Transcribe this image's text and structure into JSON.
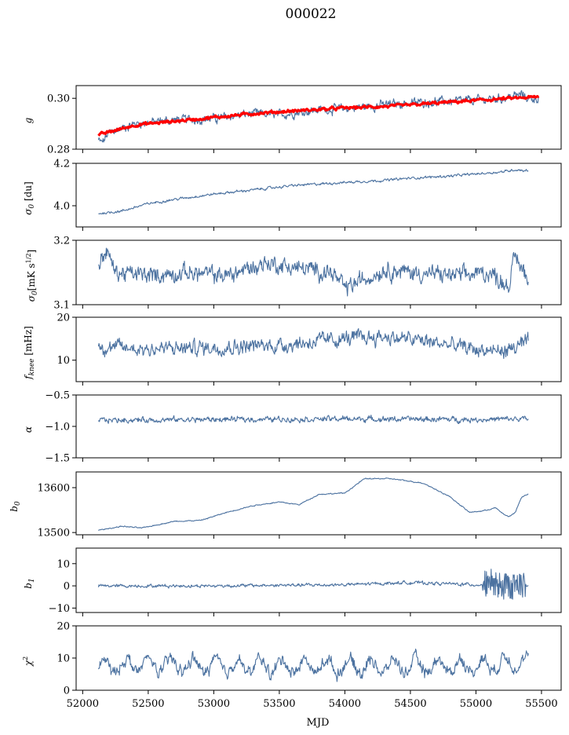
{
  "title": "000022",
  "chart_data": {
    "type": "line",
    "title": "000022",
    "xlabel": "MJD",
    "xlim": [
      51950,
      55650
    ],
    "xticks": [
      52000,
      52500,
      53000,
      53500,
      54000,
      54500,
      55000,
      55500
    ],
    "shared_x": true,
    "grid": false,
    "panels": [
      {
        "id": "g",
        "ylabel_main": "g",
        "ylabel_sub": "",
        "ylabel_suffix": "",
        "ylim": [
          0.28,
          0.305
        ],
        "yticks": [
          0.28,
          0.3
        ],
        "ytick_labels": [
          "0.28",
          "0.30"
        ],
        "data_range": [
          52120,
          55480
        ],
        "series": [
          {
            "style": "data",
            "color": "#4c72a0",
            "noise": 0.0012,
            "keys": [
              [
                52120,
                0.2835
              ],
              [
                52150,
                0.2825
              ],
              [
                52200,
                0.2865
              ],
              [
                52400,
                0.29
              ],
              [
                52700,
                0.2915
              ],
              [
                53000,
                0.292
              ],
              [
                53300,
                0.294
              ],
              [
                53500,
                0.2935
              ],
              [
                53800,
                0.2955
              ],
              [
                54000,
                0.296
              ],
              [
                54300,
                0.2975
              ],
              [
                54600,
                0.2985
              ],
              [
                54900,
                0.299
              ],
              [
                55200,
                0.3
              ],
              [
                55350,
                0.3015
              ],
              [
                55400,
                0.3
              ]
            ]
          },
          {
            "style": "fit",
            "color": "#ff0000",
            "noise": 0.0004,
            "keys": [
              [
                52120,
                0.2855
              ],
              [
                52150,
                0.286
              ],
              [
                52400,
                0.2895
              ],
              [
                52700,
                0.291
              ],
              [
                53000,
                0.2925
              ],
              [
                53300,
                0.294
              ],
              [
                53600,
                0.295
              ],
              [
                54000,
                0.2962
              ],
              [
                54400,
                0.297
              ],
              [
                54800,
                0.2985
              ],
              [
                55200,
                0.2998
              ],
              [
                55480,
                0.3005
              ]
            ]
          }
        ]
      },
      {
        "id": "sigma0-du",
        "ylabel_main": "σ",
        "ylabel_sub": "0",
        "ylabel_suffix": " [du]",
        "ylim": [
          3.9,
          4.2
        ],
        "yticks": [
          4.0,
          4.2
        ],
        "ytick_labels": [
          "4.0",
          "4.2"
        ],
        "data_range": [
          52120,
          55400
        ],
        "series": [
          {
            "style": "data",
            "color": "#4c72a0",
            "noise": 0.004,
            "keys": [
              [
                52120,
                3.963
              ],
              [
                52300,
                3.975
              ],
              [
                52500,
                4.01
              ],
              [
                52700,
                4.03
              ],
              [
                53000,
                4.055
              ],
              [
                53300,
                4.075
              ],
              [
                53600,
                4.095
              ],
              [
                54000,
                4.11
              ],
              [
                54300,
                4.12
              ],
              [
                54500,
                4.13
              ],
              [
                54800,
                4.14
              ],
              [
                55000,
                4.15
              ],
              [
                55200,
                4.16
              ],
              [
                55300,
                4.17
              ],
              [
                55400,
                4.165
              ]
            ]
          }
        ]
      },
      {
        "id": "sigma0-mks",
        "ylabel_main": "σ",
        "ylabel_sub": "0",
        "ylabel_suffix": "[mK s",
        "ylim": [
          3.1,
          3.2
        ],
        "yticks": [
          3.1,
          3.2
        ],
        "ytick_labels": [
          "3.1",
          "3.2"
        ],
        "data_range": [
          52120,
          55400
        ],
        "series": [
          {
            "style": "data",
            "color": "#4c72a0",
            "noise": 0.009,
            "keys": [
              [
                52120,
                3.162
              ],
              [
                52180,
                3.185
              ],
              [
                52250,
                3.15
              ],
              [
                52500,
                3.145
              ],
              [
                52800,
                3.15
              ],
              [
                53100,
                3.145
              ],
              [
                53400,
                3.165
              ],
              [
                53600,
                3.158
              ],
              [
                53900,
                3.15
              ],
              [
                54000,
                3.125
              ],
              [
                54300,
                3.155
              ],
              [
                54600,
                3.148
              ],
              [
                54900,
                3.145
              ],
              [
                55100,
                3.15
              ],
              [
                55250,
                3.13
              ],
              [
                55300,
                3.175
              ],
              [
                55400,
                3.14
              ]
            ]
          }
        ]
      },
      {
        "id": "fknee",
        "ylabel_main": "f",
        "ylabel_sub": "knee",
        "ylabel_suffix": " [mHz]",
        "ylim": [
          5,
          20
        ],
        "yticks": [
          10,
          20
        ],
        "ytick_labels": [
          "10",
          "20"
        ],
        "data_range": [
          52120,
          55400
        ],
        "series": [
          {
            "style": "data",
            "color": "#4c72a0",
            "noise": 1.2,
            "keys": [
              [
                52120,
                13.2
              ],
              [
                52500,
                12.6
              ],
              [
                53000,
                13
              ],
              [
                53500,
                13.5
              ],
              [
                54000,
                15
              ],
              [
                54300,
                15.5
              ],
              [
                54600,
                14.5
              ],
              [
                55000,
                12.5
              ],
              [
                55200,
                12
              ],
              [
                55300,
                13
              ],
              [
                55400,
                14
              ]
            ]
          }
        ]
      },
      {
        "id": "alpha",
        "ylabel_main": "α",
        "ylabel_sub": "",
        "ylabel_suffix": "",
        "ylim": [
          -1.5,
          -0.5
        ],
        "yticks": [
          -1.5,
          -1.0,
          -0.5
        ],
        "ytick_labels": [
          "−1.5",
          "−1.0",
          "−0.5"
        ],
        "data_range": [
          52120,
          55400
        ],
        "series": [
          {
            "style": "data",
            "color": "#4c72a0",
            "noise": 0.03,
            "keys": [
              [
                52120,
                -0.9
              ],
              [
                53000,
                -0.89
              ],
              [
                54000,
                -0.88
              ],
              [
                55000,
                -0.89
              ],
              [
                55400,
                -0.88
              ]
            ]
          }
        ]
      },
      {
        "id": "b0",
        "ylabel_main": "b",
        "ylabel_sub": "0",
        "ylabel_suffix": "",
        "ylim": [
          13495,
          13635
        ],
        "yticks": [
          13500,
          13600
        ],
        "ytick_labels": [
          "13500",
          "13600"
        ],
        "data_range": [
          52120,
          55400
        ],
        "series": [
          {
            "style": "data",
            "color": "#4c72a0",
            "noise": 0.8,
            "keys": [
              [
                52120,
                13505
              ],
              [
                52300,
                13514
              ],
              [
                52450,
                13510
              ],
              [
                52700,
                13525
              ],
              [
                52900,
                13527
              ],
              [
                53100,
                13545
              ],
              [
                53300,
                13560
              ],
              [
                53500,
                13568
              ],
              [
                53650,
                13562
              ],
              [
                53800,
                13585
              ],
              [
                54000,
                13588
              ],
              [
                54150,
                13620
              ],
              [
                54350,
                13620
              ],
              [
                54600,
                13610
              ],
              [
                54800,
                13580
              ],
              [
                54950,
                13545
              ],
              [
                55050,
                13548
              ],
              [
                55150,
                13555
              ],
              [
                55200,
                13543
              ],
              [
                55250,
                13535
              ],
              [
                55300,
                13545
              ],
              [
                55350,
                13580
              ],
              [
                55400,
                13585
              ]
            ]
          }
        ]
      },
      {
        "id": "b1",
        "ylabel_main": "b",
        "ylabel_sub": "1",
        "ylabel_suffix": "",
        "ylim": [
          -12,
          17
        ],
        "yticks": [
          -10,
          0,
          10
        ],
        "ytick_labels": [
          "−10",
          "0",
          "10"
        ],
        "data_range": [
          52120,
          55400
        ],
        "series": [
          {
            "style": "data",
            "color": "#4c72a0",
            "noise": 0.5,
            "keys": [
              [
                52120,
                0
              ],
              [
                53000,
                0
              ],
              [
                54000,
                0.5
              ],
              [
                54500,
                1.5
              ],
              [
                55000,
                0.5
              ],
              [
                55400,
                0
              ]
            ]
          }
        ]
      },
      {
        "id": "chi2",
        "ylabel_main": "χ",
        "ylabel_sub": "",
        "ylabel_suffix": "",
        "ylim": [
          0,
          20
        ],
        "yticks": [
          0,
          10,
          20
        ],
        "ytick_labels": [
          "0",
          "10",
          "20"
        ],
        "data_range": [
          52120,
          55400
        ],
        "series": [
          {
            "style": "data",
            "color": "#4c72a0",
            "noise": 1.3,
            "keys": [
              [
                52120,
                7
              ],
              [
                52400,
                8
              ],
              [
                53000,
                7.5
              ],
              [
                54000,
                7.5
              ],
              [
                55000,
                7.5
              ],
              [
                55300,
                9
              ],
              [
                55400,
                8
              ]
            ]
          }
        ]
      }
    ]
  }
}
